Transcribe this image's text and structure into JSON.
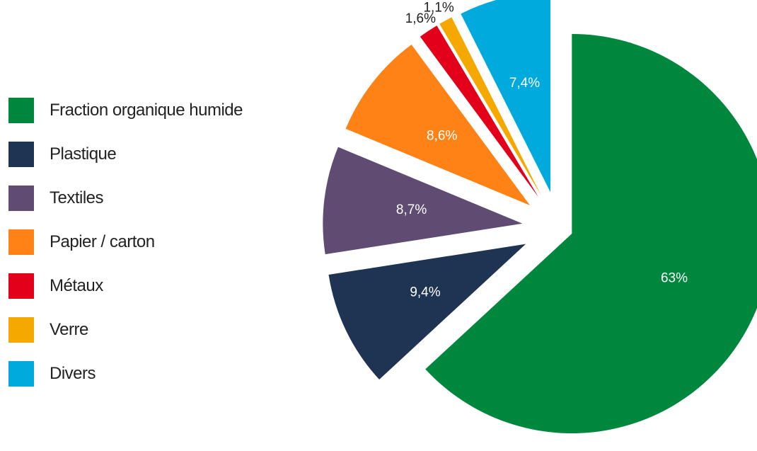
{
  "chart_data": {
    "type": "pie",
    "legend_position": "left",
    "slices": [
      {
        "label": "Fraction organique humide",
        "value": 63,
        "value_label": "63%",
        "color": "#00873e"
      },
      {
        "label": "Plastique",
        "value": 9.4,
        "value_label": "9,4%",
        "color": "#1f3352"
      },
      {
        "label": "Textiles",
        "value": 8.7,
        "value_label": "8,7%",
        "color": "#604b72"
      },
      {
        "label": "Papier / carton",
        "value": 8.6,
        "value_label": "8,6%",
        "color": "#ff8216"
      },
      {
        "label": "Métaux",
        "value": 1.6,
        "value_label": "1,6%",
        "color": "#e2001a"
      },
      {
        "label": "Verre",
        "value": 1.1,
        "value_label": "1,1%",
        "color": "#f5a800"
      },
      {
        "label": "Divers",
        "value": 7.4,
        "value_label": "7,4%",
        "color": "#00aadc"
      }
    ]
  }
}
